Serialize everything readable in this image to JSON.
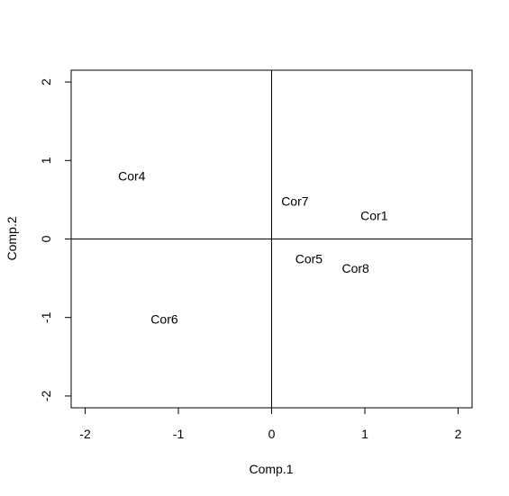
{
  "chart_data": {
    "type": "scatter",
    "title": "",
    "xlabel": "Comp.1",
    "ylabel": "Comp.2",
    "xlim": [
      -2.15,
      2.15
    ],
    "ylim": [
      -2.15,
      2.15
    ],
    "xticks": [
      -2,
      -1,
      0,
      1,
      2
    ],
    "yticks": [
      -2,
      -1,
      0,
      1,
      2
    ],
    "x_tick_labels": [
      "-2",
      "-1",
      "0",
      "1",
      "2"
    ],
    "y_tick_labels": [
      "-2",
      "-1",
      "0",
      "1",
      "2"
    ],
    "reference_lines": {
      "x": 0,
      "y": 0
    },
    "grid": false,
    "points": [
      {
        "label": "Cor1",
        "x": 1.1,
        "y": 0.3
      },
      {
        "label": "Cor4",
        "x": -1.5,
        "y": 0.8
      },
      {
        "label": "Cor5",
        "x": 0.4,
        "y": -0.25
      },
      {
        "label": "Cor6",
        "x": -1.15,
        "y": -1.02
      },
      {
        "label": "Cor7",
        "x": 0.25,
        "y": 0.48
      },
      {
        "label": "Cor8",
        "x": 0.9,
        "y": -0.37
      }
    ]
  }
}
